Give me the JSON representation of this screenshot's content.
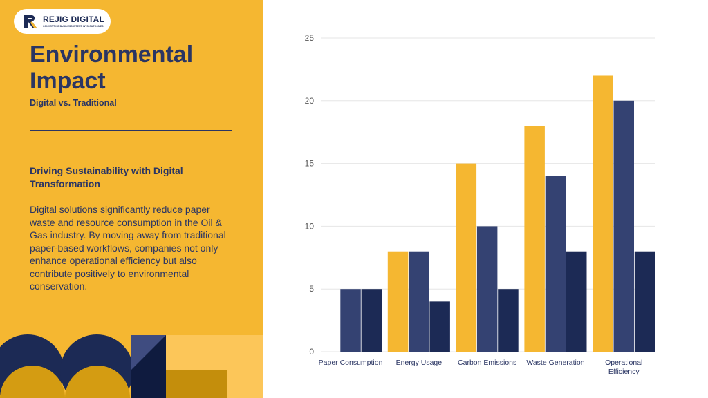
{
  "brand": {
    "name": "REJIG DIGITAL",
    "tagline": "CONVERTING BUSINESS INTENT INTO OUTCOMES"
  },
  "slide": {
    "title": "Environmental Impact",
    "subtitle": "Digital vs. Traditional",
    "section_heading": "Driving Sustainability with Digital Transformation",
    "body": "Digital solutions significantly reduce paper waste and resource consumption in the Oil & Gas industry. By moving away from traditional paper-based workflows, companies not only enhance operational efficiency but also contribute positively to environmental conservation."
  },
  "colors": {
    "panel": "#F5B731",
    "navy": "#2A3563",
    "gold": "#F5B731",
    "slate": "#344272",
    "dark": "#1C2A55"
  },
  "chart_data": {
    "type": "bar",
    "categories": [
      "Paper Consumption",
      "Energy Usage",
      "Carbon Emissions",
      "Waste Generation",
      "Operational Efficiency"
    ],
    "series": [
      {
        "color": "#F5B731",
        "values": [
          0,
          8,
          15,
          18,
          22
        ]
      },
      {
        "color": "#344272",
        "values": [
          5,
          8,
          10,
          14,
          20
        ]
      },
      {
        "color": "#1C2A55",
        "values": [
          5,
          4,
          5,
          8,
          8
        ]
      }
    ],
    "yticks": [
      0,
      5,
      10,
      15,
      20,
      25
    ],
    "ylim": [
      0,
      25
    ],
    "grid": true,
    "legend": "none"
  }
}
